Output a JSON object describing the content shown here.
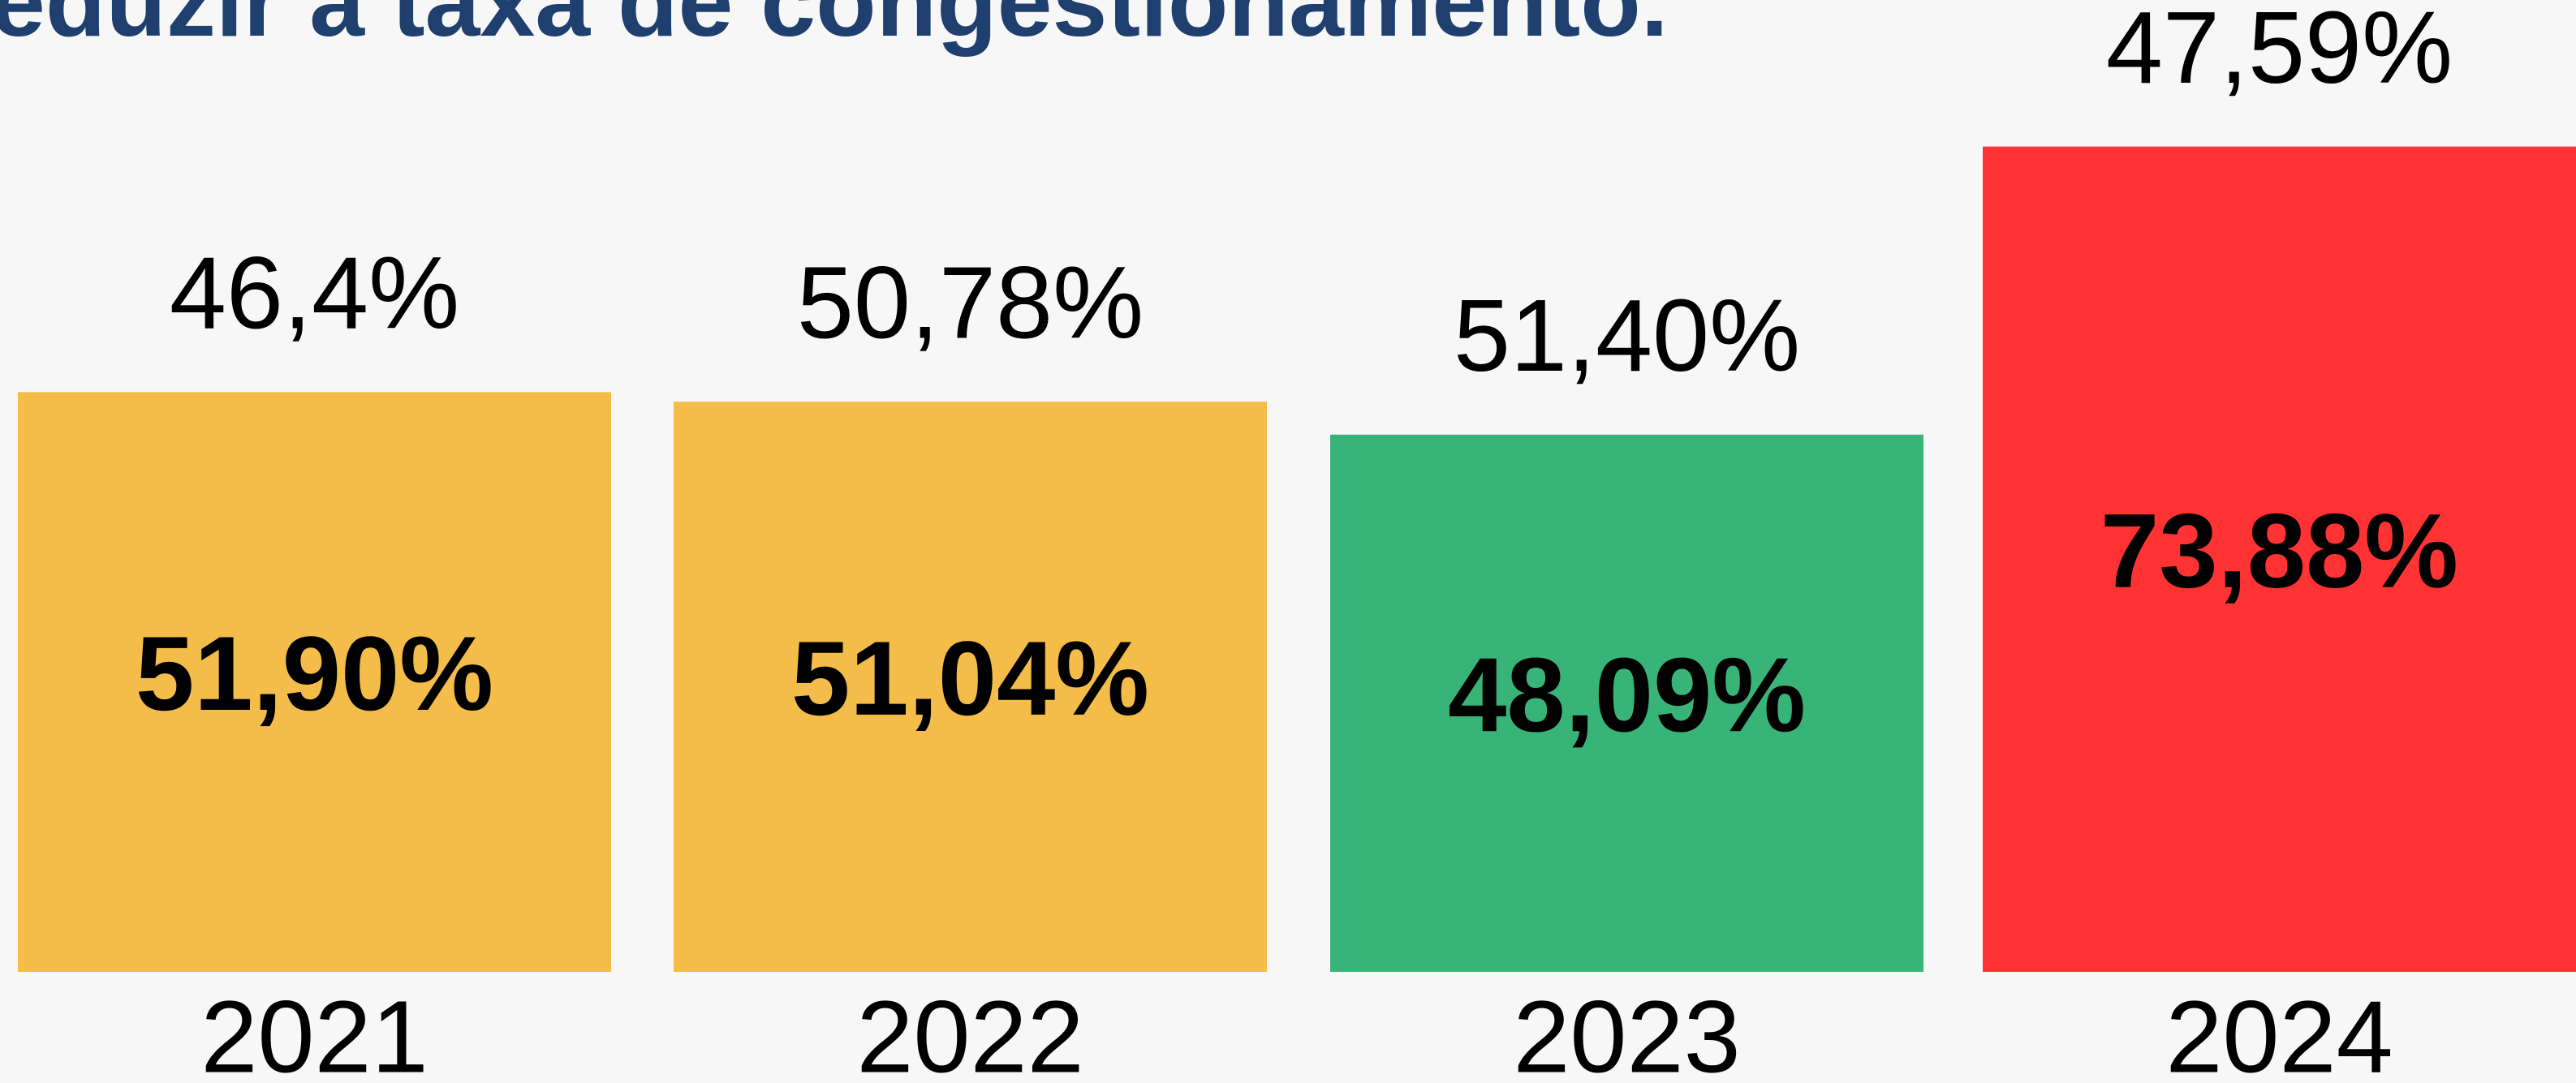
{
  "chart_data": {
    "type": "bar",
    "title": "eduzir a taxa de congestionamento.",
    "categories": [
      "2021",
      "2022",
      "2023",
      "2024"
    ],
    "values": [
      51.9,
      51.04,
      48.09,
      73.88
    ],
    "value_labels": [
      "51,90%",
      "51,04%",
      "48,09%",
      "73,88%"
    ],
    "colors": [
      "#f4bd4a",
      "#f4bd4a",
      "#38b478",
      "#ff3333"
    ],
    "targets": [
      46.4,
      50.78,
      51.4,
      47.59
    ],
    "target_labels": [
      "46,4%",
      "50,78%",
      "51,40%",
      "47,59%"
    ],
    "ylim": [
      0,
      87
    ]
  }
}
